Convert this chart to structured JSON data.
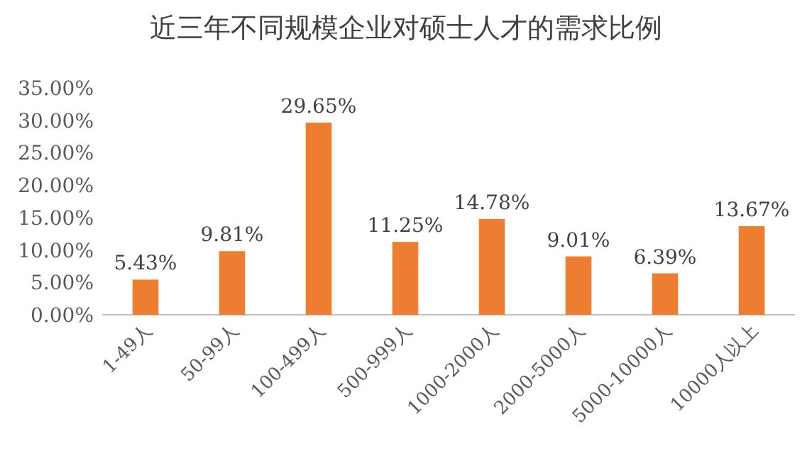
{
  "chart_data": {
    "type": "bar",
    "title": "近三年不同规模企业对硕士人才的需求比例",
    "categories": [
      "1-49人",
      "50-99人",
      "100-499人",
      "500-999人",
      "1000-2000人",
      "2000-5000人",
      "5000-10000人",
      "10000人以上"
    ],
    "values": [
      5.43,
      9.81,
      29.65,
      11.25,
      14.78,
      9.01,
      6.39,
      13.67
    ],
    "value_labels": [
      "5.43%",
      "9.81%",
      "29.65%",
      "11.25%",
      "14.78%",
      "9.01%",
      "6.39%",
      "13.67%"
    ],
    "color": "#ed7d31",
    "ylim": [
      0,
      35
    ],
    "yticks": [
      {
        "value": 0,
        "label": "0.00%"
      },
      {
        "value": 5,
        "label": "5.00%"
      },
      {
        "value": 10,
        "label": "10.00%"
      },
      {
        "value": 15,
        "label": "15.00%"
      },
      {
        "value": 20,
        "label": "20.00%"
      },
      {
        "value": 25,
        "label": "25.00%"
      },
      {
        "value": 30,
        "label": "30.00%"
      },
      {
        "value": 35,
        "label": "35.00%"
      }
    ]
  }
}
